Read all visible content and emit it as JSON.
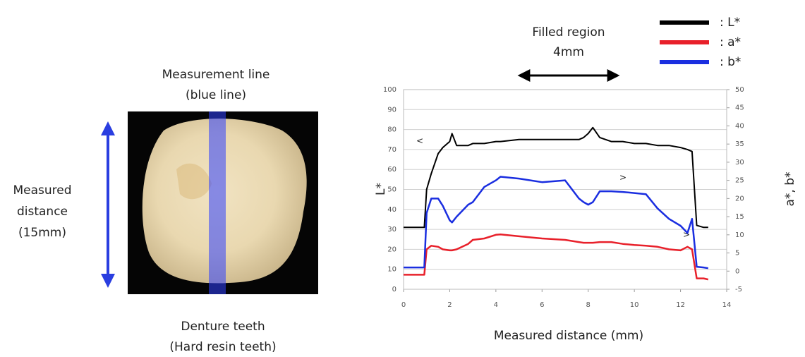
{
  "photo": {
    "measurement_line": [
      "Measurement line",
      "(blue line)"
    ],
    "measured_distance": [
      "Measured",
      "distance",
      "(15mm)"
    ],
    "sample": [
      "Denture teeth",
      "(Hard resin teeth)"
    ]
  },
  "chart_data": {
    "type": "line",
    "xlabel": "Measured distance (mm)",
    "ylabel": "L*",
    "y2label": "a*, b*",
    "annotations": [
      "Filled region",
      "4mm"
    ],
    "series_markers": [
      "<",
      ">",
      ">"
    ],
    "x": [
      0,
      0.5,
      0.9,
      1,
      1.2,
      1.5,
      1.7,
      2,
      2.1,
      2.3,
      2.8,
      3,
      3.5,
      4,
      4.2,
      5,
      6,
      7,
      7.6,
      7.8,
      8,
      8.2,
      8.5,
      9,
      9.5,
      10,
      10.5,
      11,
      11.5,
      12,
      12.3,
      12.5,
      12.7,
      13,
      13.2
    ],
    "series": [
      {
        "name": ": L*",
        "color": "#000000",
        "values": [
          31,
          31,
          31,
          50,
          58,
          68,
          71,
          74,
          78,
          72,
          72,
          73,
          73,
          74,
          74,
          75,
          75,
          75,
          75,
          76,
          78,
          81,
          76,
          74,
          74,
          73,
          73,
          72,
          72,
          71,
          70,
          69,
          32,
          31,
          31
        ]
      },
      {
        "name": ": a*",
        "color": "#e8202a",
        "axis": "y2",
        "values": [
          -1,
          -1,
          -1,
          6,
          7,
          6.7,
          6,
          5.7,
          5.7,
          6,
          7.5,
          8.6,
          9,
          10,
          10.1,
          9.6,
          9,
          8.6,
          8,
          7.8,
          7.8,
          7.8,
          8,
          8,
          7.5,
          7.2,
          7,
          6.7,
          6,
          5.7,
          6.7,
          6,
          -2,
          -2,
          -2.3
        ]
      },
      {
        "name": ": b*",
        "color": "#1a2ee0",
        "axis": "y2",
        "values": [
          1,
          1,
          1,
          16,
          20,
          20,
          18,
          14,
          13.4,
          15,
          18.3,
          19,
          23.2,
          25,
          26,
          25.5,
          24.5,
          25,
          20,
          19,
          18.3,
          19,
          22,
          22,
          21.8,
          21.5,
          21.2,
          17.3,
          14.4,
          12.5,
          10.5,
          14.4,
          1.2,
          1,
          0.8
        ]
      }
    ],
    "xlim": [
      0,
      14
    ],
    "xticks": [
      0,
      2,
      4,
      6,
      8,
      10,
      12,
      14
    ],
    "ylim": [
      0,
      100
    ],
    "yticks": [
      0,
      10,
      20,
      30,
      40,
      50,
      60,
      70,
      80,
      90,
      100
    ],
    "y2lim": [
      -5,
      50
    ],
    "y2ticks": [
      -5,
      0,
      5,
      10,
      15,
      20,
      25,
      30,
      35,
      40,
      45,
      50
    ],
    "grid": true
  }
}
